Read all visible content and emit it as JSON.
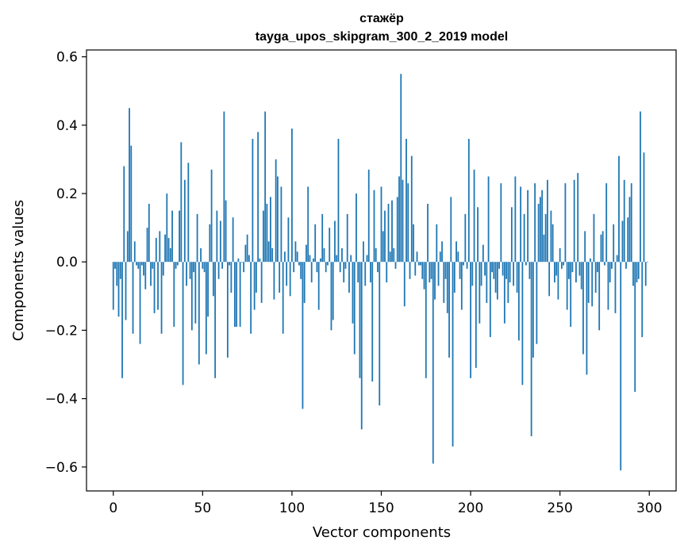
{
  "chart_data": {
    "type": "bar",
    "title_line1": "стажёр",
    "title_line2": "tayga_upos_skipgram_300_2_2019 model",
    "xlabel": "Vector components",
    "ylabel": "Components values",
    "xlim": [
      -15,
      315
    ],
    "ylim": [
      -0.67,
      0.62
    ],
    "xticks": [
      0,
      50,
      100,
      150,
      200,
      250,
      300
    ],
    "xtick_labels": [
      "0",
      "50",
      "100",
      "150",
      "200",
      "250",
      "300"
    ],
    "yticks": [
      -0.6,
      -0.4,
      -0.2,
      0.0,
      0.2,
      0.4,
      0.6
    ],
    "ytick_labels": [
      "−0.6",
      "−0.4",
      "−0.2",
      "0.0",
      "0.2",
      "0.4",
      "0.6"
    ],
    "bar_color": "#1f77b4",
    "values": [
      -0.14,
      -0.02,
      -0.07,
      -0.16,
      -0.05,
      -0.34,
      0.28,
      -0.17,
      0.09,
      0.45,
      0.34,
      -0.21,
      0.06,
      -0.01,
      -0.02,
      -0.24,
      -0.01,
      -0.04,
      -0.08,
      0.1,
      0.17,
      -0.07,
      -0.02,
      -0.15,
      0.07,
      -0.14,
      0.09,
      -0.21,
      -0.04,
      0.08,
      0.2,
      0.07,
      0.04,
      0.15,
      -0.19,
      -0.02,
      -0.01,
      0.15,
      0.35,
      -0.36,
      0.24,
      -0.07,
      0.29,
      -0.05,
      -0.2,
      -0.03,
      -0.18,
      0.14,
      -0.3,
      0.04,
      -0.02,
      -0.03,
      -0.27,
      -0.16,
      0.11,
      0.27,
      -0.1,
      -0.34,
      0.15,
      -0.05,
      0.12,
      -0.02,
      0.44,
      0.18,
      -0.28,
      -0.01,
      -0.09,
      0.13,
      -0.19,
      -0.19,
      0.01,
      -0.19,
      0.0,
      -0.03,
      0.05,
      0.08,
      0.02,
      -0.21,
      0.36,
      -0.14,
      -0.09,
      0.38,
      0.01,
      -0.12,
      0.15,
      0.44,
      0.17,
      0.06,
      0.19,
      0.04,
      -0.11,
      0.3,
      0.25,
      -0.09,
      0.22,
      -0.21,
      0.03,
      -0.07,
      0.13,
      -0.1,
      0.39,
      -0.03,
      0.06,
      0.03,
      -0.01,
      -0.05,
      -0.43,
      -0.12,
      0.05,
      0.22,
      0.02,
      -0.06,
      0.01,
      0.11,
      -0.03,
      -0.14,
      0.01,
      0.14,
      0.04,
      -0.03,
      -0.01,
      0.1,
      -0.2,
      -0.17,
      0.12,
      0.02,
      0.36,
      -0.03,
      0.04,
      -0.06,
      -0.02,
      0.14,
      -0.09,
      0.02,
      -0.18,
      -0.27,
      0.2,
      -0.06,
      -0.34,
      -0.49,
      0.06,
      -0.07,
      0.02,
      0.27,
      -0.06,
      -0.35,
      0.21,
      0.04,
      -0.03,
      -0.42,
      0.22,
      0.09,
      0.15,
      -0.06,
      0.17,
      0.03,
      0.18,
      0.04,
      -0.02,
      0.19,
      0.25,
      0.55,
      0.24,
      -0.13,
      0.36,
      0.23,
      -0.05,
      0.31,
      0.11,
      -0.04,
      0.03,
      -0.01,
      -0.01,
      -0.05,
      -0.08,
      -0.34,
      0.17,
      -0.06,
      -0.05,
      -0.59,
      -0.11,
      0.11,
      -0.07,
      0.03,
      0.06,
      -0.12,
      -0.05,
      -0.15,
      -0.28,
      0.19,
      -0.54,
      -0.09,
      0.06,
      0.03,
      -0.05,
      -0.14,
      -0.01,
      0.14,
      -0.02,
      0.36,
      -0.34,
      -0.07,
      0.27,
      -0.31,
      0.16,
      -0.18,
      -0.07,
      0.05,
      -0.04,
      -0.12,
      0.25,
      -0.22,
      -0.03,
      -0.05,
      -0.09,
      -0.11,
      -0.02,
      0.23,
      -0.04,
      -0.18,
      -0.05,
      -0.12,
      -0.06,
      0.16,
      -0.07,
      0.25,
      -0.09,
      -0.23,
      0.22,
      -0.36,
      0.14,
      -0.01,
      0.21,
      -0.05,
      -0.51,
      -0.28,
      0.23,
      -0.24,
      0.17,
      0.19,
      0.21,
      0.08,
      0.14,
      0.24,
      -0.1,
      0.15,
      0.11,
      -0.06,
      -0.04,
      -0.11,
      0.04,
      -0.02,
      -0.01,
      0.23,
      -0.14,
      -0.05,
      -0.19,
      -0.03,
      0.24,
      -0.06,
      0.26,
      -0.04,
      -0.08,
      -0.27,
      0.09,
      -0.33,
      -0.12,
      0.01,
      -0.13,
      0.14,
      -0.09,
      -0.03,
      -0.2,
      0.08,
      0.09,
      -0.01,
      0.23,
      -0.14,
      -0.06,
      -0.02,
      0.11,
      -0.15,
      0.02,
      0.31,
      -0.61,
      0.12,
      0.24,
      -0.02,
      0.13,
      0.19,
      0.23,
      -0.07,
      -0.38,
      -0.06,
      -0.05,
      0.44,
      -0.22,
      0.32,
      -0.07,
      0.0
    ]
  }
}
